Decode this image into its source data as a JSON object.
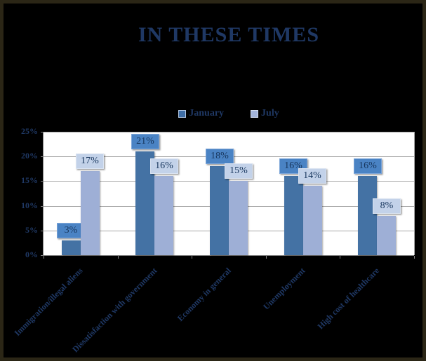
{
  "frame": {
    "background": "#000000",
    "border_color": "#2b2616"
  },
  "title": "IN THESE TIMES",
  "legend": [
    {
      "label": "January",
      "color": "#3f6ea6",
      "border_color": "#b2c6e2"
    },
    {
      "label": "July",
      "color": "#a3b4da",
      "border_color": "#d4def0"
    }
  ],
  "y_axis": {
    "tick_labels": [
      "0%",
      "5%",
      "10%",
      "15%",
      "20%",
      "25%"
    ]
  },
  "chart_data": {
    "type": "bar",
    "title": "IN THESE TIMES",
    "categories": [
      "Immigration/illegal aliens",
      "Dissatisfaction with government",
      "Economy in general",
      "Unemployment",
      "High cost of healthcare"
    ],
    "series": [
      {
        "name": "January",
        "values": [
          3,
          21,
          18,
          16,
          16
        ],
        "bar_color": "#4472a4",
        "label_bg": "#4a83c4",
        "label_border": "#7aa4d8"
      },
      {
        "name": "July",
        "values": [
          17,
          16,
          15,
          14,
          8
        ],
        "bar_color": "#9eafd6",
        "label_bg": "#c3d2e9",
        "label_border": "#dbe4f2"
      }
    ],
    "value_suffix": "%",
    "ylim": [
      0,
      25
    ],
    "y_tick_step": 5,
    "grid": true,
    "legend_position": "top-center",
    "plot_background": "#ffffff",
    "gridline_color": "#a6a6a6",
    "axis_line_color": "#808080",
    "axis_text_color": "#1f3864",
    "data_label_text_color": "#17365d"
  }
}
